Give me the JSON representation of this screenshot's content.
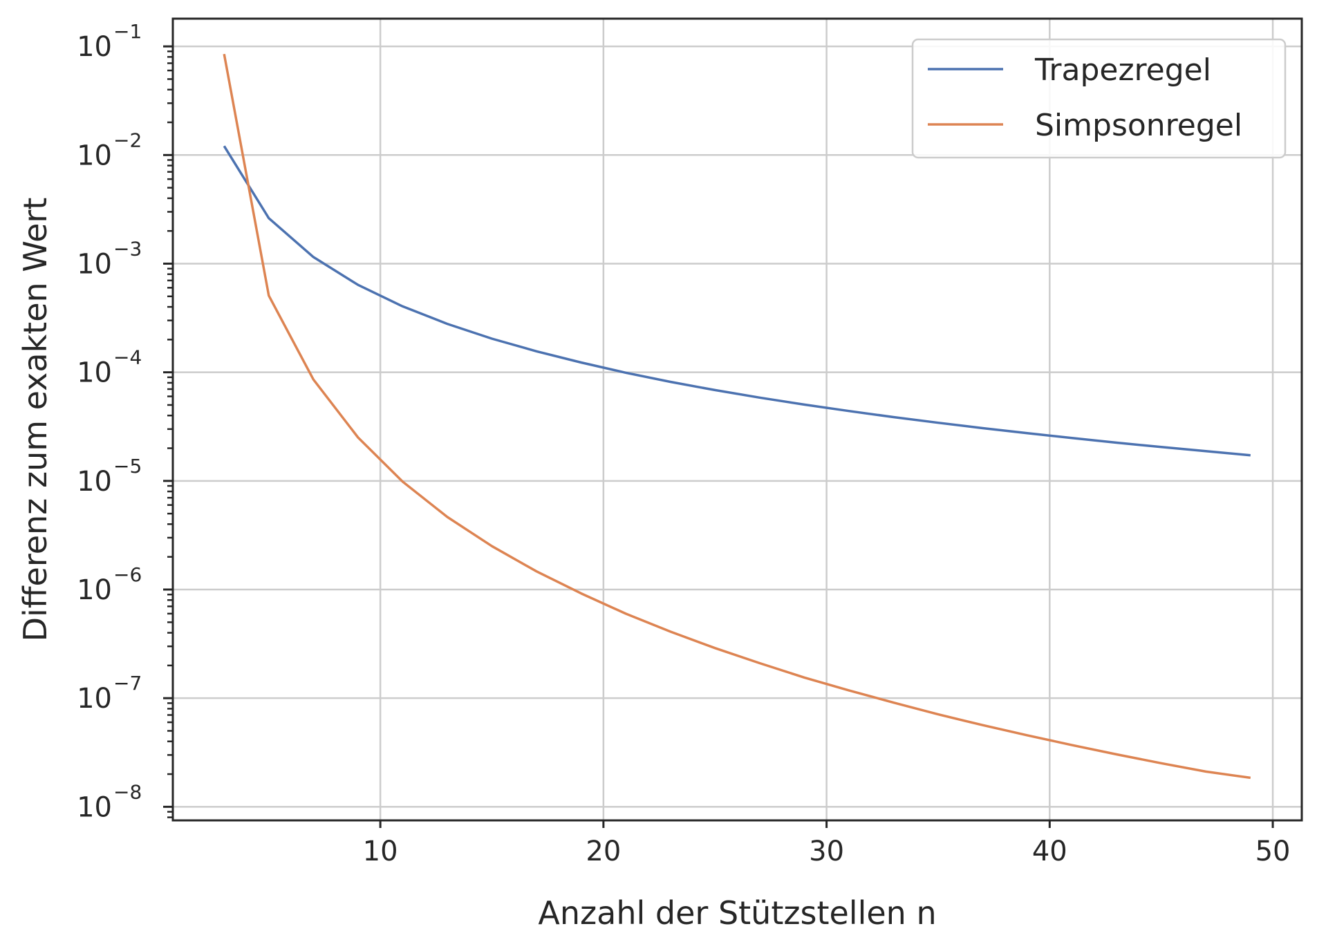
{
  "chart_data": {
    "type": "line",
    "xlabel": "Anzahl der Stützstellen n",
    "ylabel": "Differenz zum exakten Wert",
    "xscale": "linear",
    "yscale": "log",
    "xlim": [
      0.7,
      51.3
    ],
    "ylim": [
      7.5e-09,
      0.18
    ],
    "xticks": [
      10,
      20,
      30,
      40,
      50
    ],
    "yticks": [
      {
        "base": "10",
        "exp": "−1",
        "value": 0.1
      },
      {
        "base": "10",
        "exp": "−2",
        "value": 0.01
      },
      {
        "base": "10",
        "exp": "−3",
        "value": 0.001
      },
      {
        "base": "10",
        "exp": "−4",
        "value": 0.0001
      },
      {
        "base": "10",
        "exp": "−5",
        "value": 1e-05
      },
      {
        "base": "10",
        "exp": "−6",
        "value": 1e-06
      },
      {
        "base": "10",
        "exp": "−7",
        "value": 1e-07
      },
      {
        "base": "10",
        "exp": "−8",
        "value": 1e-08
      }
    ],
    "grid": true,
    "legend_position": "top-right",
    "x": [
      3,
      5,
      7,
      9,
      11,
      13,
      15,
      17,
      19,
      21,
      23,
      25,
      27,
      29,
      31,
      33,
      35,
      37,
      39,
      41,
      43,
      45,
      47,
      49
    ],
    "series": [
      {
        "name": "Trapezregel",
        "color": "#4c72b0",
        "values": [
          0.0121,
          0.00262,
          0.00115,
          0.000638,
          0.000404,
          0.000279,
          0.000204,
          0.000156,
          0.000123,
          9.9e-05,
          8.17e-05,
          6.86e-05,
          5.85e-05,
          5.04e-05,
          4.4e-05,
          3.87e-05,
          3.43e-05,
          3.06e-05,
          2.75e-05,
          2.48e-05,
          2.25e-05,
          2.05e-05,
          1.88e-05,
          1.72e-05
        ]
      },
      {
        "name": "Simpsonregel",
        "color": "#dd8452",
        "values": [
          0.085,
          0.000508,
          8.58e-05,
          2.51e-05,
          9.85e-06,
          4.66e-06,
          2.51e-06,
          1.47e-06,
          9.22e-07,
          6e-07,
          4.1e-07,
          2.89e-07,
          2.1e-07,
          1.55e-07,
          1.18e-07,
          9.1e-08,
          7.1e-08,
          5.65e-08,
          4.55e-08,
          3.7e-08,
          3.04e-08,
          2.52e-08,
          2.11e-08,
          1.85e-08
        ]
      }
    ]
  }
}
